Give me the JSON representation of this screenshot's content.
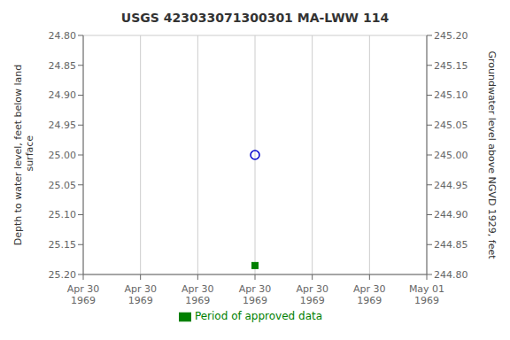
{
  "chart_data": {
    "type": "scatter",
    "title": "USGS 423033071300301 MA-LWW  114",
    "y_label": "Depth to water level, feet below land\n surface",
    "y2_label": "Groundwater level above NGVD 1929, feet",
    "categories": [
      "Apr 30\n1969",
      "Apr 30\n1969",
      "Apr 30\n1969",
      "Apr 30\n1969",
      "Apr 30\n1969",
      "Apr 30\n1969",
      "May 01\n1969"
    ],
    "series": [
      {
        "color": "#0000cc",
        "marker": "open_circle",
        "values": [
          null,
          null,
          null,
          25.0,
          null,
          null,
          null
        ]
      },
      {
        "name": "Period of approved data",
        "color": "#008000",
        "marker": "square",
        "values": [
          null,
          null,
          null,
          25.185,
          null,
          null,
          null
        ]
      }
    ],
    "ylim": [
      25.2,
      24.8
    ],
    "yticks": [
      {
        "value": 24.8,
        "label": "24.80"
      },
      24.85,
      {
        "value": 24.9,
        "label": "24.90"
      },
      24.95,
      {
        "value": 25.0,
        "label": "25.00"
      },
      25.05,
      {
        "value": 25.1,
        "label": "25.10"
      },
      25.15,
      {
        "value": 25.2,
        "label": "25.20"
      }
    ],
    "y2lim": [
      244.8,
      245.2
    ],
    "y2ticks": [
      {
        "value": 244.8,
        "label": "244.80"
      },
      244.85,
      {
        "value": 244.9,
        "label": "244.90"
      },
      244.95,
      {
        "value": 245.0,
        "label": "245.00"
      },
      245.05,
      {
        "value": 245.1,
        "label": "245.10"
      },
      245.15,
      {
        "value": 245.2,
        "label": "245.20"
      }
    ],
    "grid": true
  }
}
